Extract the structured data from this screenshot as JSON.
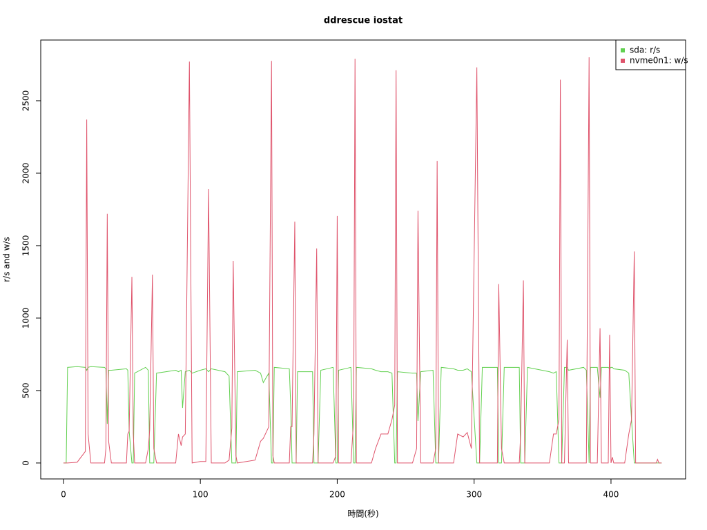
{
  "chart_data": {
    "type": "line",
    "title": "ddrescue iostat",
    "x_label": "時間(秒)",
    "y_label": "r/s and w/s",
    "x": [
      0,
      2,
      3,
      10,
      16,
      17,
      18,
      20,
      30,
      31,
      32,
      33,
      35,
      46,
      47,
      48,
      50,
      51,
      52,
      60,
      62,
      63,
      65,
      66,
      68,
      82,
      84,
      86,
      87,
      89,
      92,
      94,
      100,
      104,
      106,
      108,
      118,
      121,
      123,
      124,
      126,
      127,
      140,
      144,
      146,
      150,
      152,
      153,
      154,
      165,
      166,
      167,
      169,
      170,
      171,
      182,
      183,
      185,
      186,
      188,
      197,
      199,
      200,
      201,
      210,
      212,
      213,
      214,
      225,
      228,
      232,
      237,
      240,
      242,
      243,
      244,
      255,
      258,
      259,
      261,
      270,
      272,
      273,
      274,
      276,
      285,
      288,
      292,
      295,
      298,
      302,
      304,
      306,
      317,
      318,
      320,
      322,
      333,
      334,
      336,
      337,
      339,
      355,
      358,
      360,
      362,
      363,
      364,
      366,
      368,
      369,
      380,
      382,
      384,
      385,
      390,
      392,
      393,
      398,
      399,
      400,
      401,
      402,
      410,
      413,
      415,
      417,
      418,
      433,
      434,
      435,
      437
    ],
    "series": [
      {
        "name": "sda: r/s",
        "color": "#61D04F",
        "values": [
          0,
          0,
          660,
          665,
          660,
          640,
          660,
          665,
          660,
          650,
          270,
          640,
          640,
          650,
          640,
          220,
          0,
          0,
          620,
          660,
          640,
          0,
          0,
          0,
          620,
          640,
          630,
          640,
          380,
          630,
          640,
          620,
          640,
          650,
          630,
          650,
          630,
          600,
          0,
          0,
          0,
          630,
          640,
          620,
          555,
          620,
          0,
          0,
          660,
          650,
          400,
          0,
          0,
          0,
          630,
          630,
          0,
          0,
          0,
          640,
          660,
          0,
          0,
          640,
          660,
          0,
          0,
          660,
          650,
          640,
          630,
          630,
          620,
          0,
          0,
          630,
          620,
          620,
          290,
          630,
          640,
          0,
          0,
          0,
          660,
          650,
          640,
          640,
          650,
          630,
          0,
          0,
          660,
          660,
          0,
          0,
          660,
          660,
          0,
          0,
          0,
          660,
          630,
          620,
          630,
          0,
          0,
          0,
          660,
          660,
          640,
          660,
          640,
          0,
          660,
          660,
          450,
          660,
          660,
          650,
          660,
          660,
          650,
          640,
          620,
          300,
          0,
          0,
          0,
          0,
          0,
          0
        ]
      },
      {
        "name": "nvme0n1: w/s",
        "color": "#DF536B",
        "values": [
          0,
          0,
          0,
          5,
          80,
          2370,
          200,
          0,
          0,
          100,
          1720,
          150,
          0,
          0,
          200,
          220,
          1285,
          200,
          0,
          0,
          100,
          230,
          1300,
          100,
          0,
          0,
          200,
          120,
          180,
          200,
          2770,
          0,
          10,
          10,
          1890,
          0,
          0,
          20,
          240,
          1395,
          50,
          0,
          20,
          150,
          170,
          250,
          2775,
          50,
          0,
          0,
          250,
          250,
          1665,
          0,
          0,
          0,
          200,
          1480,
          0,
          0,
          0,
          50,
          1705,
          0,
          0,
          300,
          2790,
          0,
          0,
          100,
          200,
          200,
          300,
          400,
          2710,
          0,
          0,
          100,
          1740,
          0,
          0,
          100,
          2085,
          0,
          0,
          0,
          200,
          180,
          210,
          100,
          2730,
          0,
          0,
          0,
          1235,
          100,
          0,
          0,
          200,
          1260,
          0,
          0,
          0,
          200,
          200,
          300,
          2645,
          0,
          0,
          850,
          0,
          0,
          0,
          2800,
          0,
          0,
          930,
          0,
          0,
          885,
          0,
          40,
          0,
          0,
          200,
          300,
          1460,
          0,
          0,
          25,
          0,
          0
        ]
      }
    ],
    "xlim": [
      -16.6,
      454.5
    ],
    "ylim": [
      -110,
      2919
    ],
    "xticks": [
      0,
      100,
      200,
      300,
      400
    ],
    "yticks": [
      0,
      500,
      1000,
      1500,
      2000,
      2500
    ],
    "legend": "top-right"
  }
}
